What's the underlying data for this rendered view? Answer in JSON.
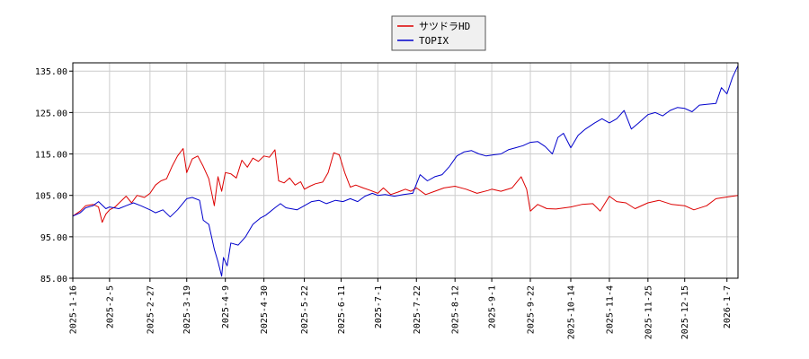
{
  "chart_data": {
    "type": "line",
    "title": "",
    "xlabel": "",
    "ylabel": "",
    "ylim": [
      85,
      137
    ],
    "y_ticks": [
      "85.00",
      "95.00",
      "105.00",
      "115.00",
      "125.00",
      "135.00"
    ],
    "x_ticks": [
      "2025-1-16",
      "2025-2-5",
      "2025-2-27",
      "2025-3-19",
      "2025-4-9",
      "2025-4-30",
      "2025-5-22",
      "2025-6-11",
      "2025-7-1",
      "2025-7-22",
      "2025-8-12",
      "2025-9-1",
      "2025-9-22",
      "2025-10-14",
      "2025-11-4",
      "2025-11-25",
      "2025-12-15",
      "2026-1-7"
    ],
    "grid": true,
    "legend_position": "top-center",
    "x_start": "2025-01-16",
    "x_end": "2026-01-13",
    "series": [
      {
        "name": "サツドラHD",
        "color": "#dd0000",
        "points": [
          [
            "2025-01-16",
            100
          ],
          [
            "2025-01-20",
            101.2
          ],
          [
            "2025-01-23",
            102.5
          ],
          [
            "2025-01-27",
            102.8
          ],
          [
            "2025-01-30",
            102.2
          ],
          [
            "2025-02-01",
            98.5
          ],
          [
            "2025-02-03",
            100.5
          ],
          [
            "2025-02-05",
            101.5
          ],
          [
            "2025-02-08",
            102.2
          ],
          [
            "2025-02-11",
            103.5
          ],
          [
            "2025-02-14",
            104.8
          ],
          [
            "2025-02-17",
            103.2
          ],
          [
            "2025-02-20",
            105
          ],
          [
            "2025-02-24",
            104.5
          ],
          [
            "2025-02-27",
            105.5
          ],
          [
            "2025-03-02",
            107.5
          ],
          [
            "2025-03-05",
            108.5
          ],
          [
            "2025-03-08",
            109
          ],
          [
            "2025-03-11",
            112
          ],
          [
            "2025-03-14",
            114.5
          ],
          [
            "2025-03-17",
            116.3
          ],
          [
            "2025-03-19",
            110.5
          ],
          [
            "2025-03-22",
            113.8
          ],
          [
            "2025-03-25",
            114.5
          ],
          [
            "2025-03-28",
            112
          ],
          [
            "2025-03-31",
            109
          ],
          [
            "2025-04-03",
            102.5
          ],
          [
            "2025-04-05",
            109.5
          ],
          [
            "2025-04-07",
            106
          ],
          [
            "2025-04-09",
            110.5
          ],
          [
            "2025-04-12",
            110.2
          ],
          [
            "2025-04-15",
            109.2
          ],
          [
            "2025-04-18",
            113.5
          ],
          [
            "2025-04-21",
            111.8
          ],
          [
            "2025-04-24",
            114
          ],
          [
            "2025-04-27",
            113.2
          ],
          [
            "2025-04-30",
            114.5
          ],
          [
            "2025-05-03",
            114.2
          ],
          [
            "2025-05-06",
            116
          ],
          [
            "2025-05-08",
            108.5
          ],
          [
            "2025-05-11",
            108
          ],
          [
            "2025-05-14",
            109.2
          ],
          [
            "2025-05-17",
            107.5
          ],
          [
            "2025-05-20",
            108.3
          ],
          [
            "2025-05-22",
            106.5
          ],
          [
            "2025-05-25",
            107.2
          ],
          [
            "2025-05-28",
            107.8
          ],
          [
            "2025-06-01",
            108.2
          ],
          [
            "2025-06-04",
            110.5
          ],
          [
            "2025-06-07",
            115.3
          ],
          [
            "2025-06-10",
            114.8
          ],
          [
            "2025-06-13",
            110.5
          ],
          [
            "2025-06-16",
            107
          ],
          [
            "2025-06-19",
            107.5
          ],
          [
            "2025-06-23",
            106.8
          ],
          [
            "2025-06-27",
            106.2
          ],
          [
            "2025-07-01",
            105.5
          ],
          [
            "2025-07-04",
            106.8
          ],
          [
            "2025-07-08",
            105.2
          ],
          [
            "2025-07-12",
            105.8
          ],
          [
            "2025-07-16",
            106.5
          ],
          [
            "2025-07-19",
            106
          ],
          [
            "2025-07-22",
            106.8
          ],
          [
            "2025-07-27",
            105.2
          ],
          [
            "2025-08-01",
            106
          ],
          [
            "2025-08-06",
            106.8
          ],
          [
            "2025-08-12",
            107.2
          ],
          [
            "2025-08-18",
            106.5
          ],
          [
            "2025-08-24",
            105.5
          ],
          [
            "2025-08-30",
            106.2
          ],
          [
            "2025-09-01",
            106.5
          ],
          [
            "2025-09-06",
            106
          ],
          [
            "2025-09-12",
            106.8
          ],
          [
            "2025-09-17",
            109.5
          ],
          [
            "2025-09-20",
            106.5
          ],
          [
            "2025-09-22",
            101.2
          ],
          [
            "2025-09-26",
            102.8
          ],
          [
            "2025-10-01",
            101.8
          ],
          [
            "2025-10-06",
            101.7
          ],
          [
            "2025-10-14",
            102.2
          ],
          [
            "2025-10-20",
            102.8
          ],
          [
            "2025-10-26",
            103
          ],
          [
            "2025-10-30",
            101.2
          ],
          [
            "2025-11-04",
            104.8
          ],
          [
            "2025-11-08",
            103.5
          ],
          [
            "2025-11-13",
            103.2
          ],
          [
            "2025-11-18",
            101.8
          ],
          [
            "2025-11-25",
            103.2
          ],
          [
            "2025-12-01",
            103.8
          ],
          [
            "2025-12-08",
            102.8
          ],
          [
            "2025-12-15",
            102.5
          ],
          [
            "2025-12-20",
            101.5
          ],
          [
            "2025-12-27",
            102.5
          ],
          [
            "2026-01-01",
            104.2
          ],
          [
            "2026-01-07",
            104.6
          ],
          [
            "2026-01-13",
            105
          ]
        ]
      },
      {
        "name": "TOPIX",
        "color": "#0000cc",
        "points": [
          [
            "2025-01-16",
            100
          ],
          [
            "2025-01-20",
            100.8
          ],
          [
            "2025-01-23",
            102
          ],
          [
            "2025-01-27",
            102.5
          ],
          [
            "2025-01-30",
            103.5
          ],
          [
            "2025-02-03",
            101.8
          ],
          [
            "2025-02-05",
            102.2
          ],
          [
            "2025-02-10",
            101.8
          ],
          [
            "2025-02-14",
            102.5
          ],
          [
            "2025-02-18",
            103.2
          ],
          [
            "2025-02-22",
            102.5
          ],
          [
            "2025-02-27",
            101.5
          ],
          [
            "2025-03-02",
            100.8
          ],
          [
            "2025-03-06",
            101.5
          ],
          [
            "2025-03-10",
            99.8
          ],
          [
            "2025-03-14",
            101.5
          ],
          [
            "2025-03-19",
            104.2
          ],
          [
            "2025-03-22",
            104.5
          ],
          [
            "2025-03-26",
            103.8
          ],
          [
            "2025-03-28",
            99
          ],
          [
            "2025-03-31",
            98
          ],
          [
            "2025-04-03",
            92
          ],
          [
            "2025-04-05",
            89
          ],
          [
            "2025-04-07",
            85.5
          ],
          [
            "2025-04-08",
            90
          ],
          [
            "2025-04-10",
            88
          ],
          [
            "2025-04-12",
            93.5
          ],
          [
            "2025-04-16",
            93
          ],
          [
            "2025-04-20",
            95
          ],
          [
            "2025-04-24",
            98
          ],
          [
            "2025-04-28",
            99.5
          ],
          [
            "2025-05-01",
            100.2
          ],
          [
            "2025-05-06",
            102
          ],
          [
            "2025-05-09",
            103
          ],
          [
            "2025-05-12",
            102
          ],
          [
            "2025-05-18",
            101.5
          ],
          [
            "2025-05-22",
            102.5
          ],
          [
            "2025-05-26",
            103.5
          ],
          [
            "2025-05-30",
            103.8
          ],
          [
            "2025-06-03",
            103
          ],
          [
            "2025-06-08",
            103.8
          ],
          [
            "2025-06-12",
            103.5
          ],
          [
            "2025-06-16",
            104.2
          ],
          [
            "2025-06-20",
            103.5
          ],
          [
            "2025-06-24",
            104.8
          ],
          [
            "2025-06-28",
            105.5
          ],
          [
            "2025-07-01",
            105
          ],
          [
            "2025-07-05",
            105.2
          ],
          [
            "2025-07-10",
            104.8
          ],
          [
            "2025-07-15",
            105.2
          ],
          [
            "2025-07-20",
            105.5
          ],
          [
            "2025-07-24",
            110
          ],
          [
            "2025-07-28",
            108.5
          ],
          [
            "2025-08-01",
            109.5
          ],
          [
            "2025-08-05",
            110
          ],
          [
            "2025-08-09",
            112
          ],
          [
            "2025-08-13",
            114.5
          ],
          [
            "2025-08-17",
            115.5
          ],
          [
            "2025-08-21",
            115.8
          ],
          [
            "2025-08-25",
            115
          ],
          [
            "2025-08-29",
            114.5
          ],
          [
            "2025-09-02",
            114.8
          ],
          [
            "2025-09-06",
            115
          ],
          [
            "2025-09-10",
            116
          ],
          [
            "2025-09-14",
            116.5
          ],
          [
            "2025-09-18",
            117
          ],
          [
            "2025-09-22",
            117.8
          ],
          [
            "2025-09-26",
            118
          ],
          [
            "2025-09-30",
            116.8
          ],
          [
            "2025-10-04",
            115
          ],
          [
            "2025-10-07",
            119
          ],
          [
            "2025-10-10",
            120
          ],
          [
            "2025-10-14",
            116.5
          ],
          [
            "2025-10-18",
            119.5
          ],
          [
            "2025-10-22",
            121
          ],
          [
            "2025-10-27",
            122.5
          ],
          [
            "2025-10-31",
            123.5
          ],
          [
            "2025-11-04",
            122.5
          ],
          [
            "2025-11-08",
            123.5
          ],
          [
            "2025-11-12",
            125.5
          ],
          [
            "2025-11-16",
            121
          ],
          [
            "2025-11-20",
            122.5
          ],
          [
            "2025-11-25",
            124.5
          ],
          [
            "2025-11-29",
            125
          ],
          [
            "2025-12-03",
            124.2
          ],
          [
            "2025-12-07",
            125.5
          ],
          [
            "2025-12-11",
            126.2
          ],
          [
            "2025-12-15",
            126
          ],
          [
            "2025-12-19",
            125.2
          ],
          [
            "2025-12-23",
            126.8
          ],
          [
            "2025-12-27",
            127
          ],
          [
            "2026-01-01",
            127.2
          ],
          [
            "2026-01-04",
            131
          ],
          [
            "2026-01-07",
            129.5
          ],
          [
            "2026-01-10",
            133.5
          ],
          [
            "2026-01-13",
            136.3
          ]
        ]
      }
    ]
  }
}
